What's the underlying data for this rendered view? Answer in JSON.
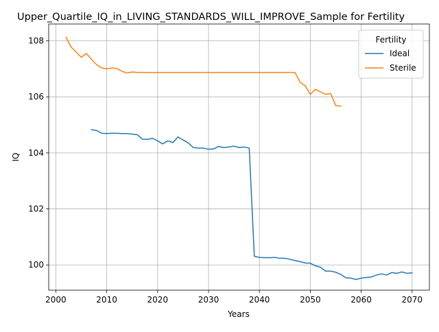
{
  "chart_data": {
    "type": "line",
    "title": "Upper_Quartile_IQ_in_LIVING_STANDARDS_WILL_IMPROVE_Sample for Fertility",
    "xlabel": "Years",
    "ylabel": "IQ",
    "xlim": [
      1998.6,
      2073.4
    ],
    "ylim": [
      99.1,
      108.6
    ],
    "xticks": [
      2000,
      2010,
      2020,
      2030,
      2040,
      2050,
      2060,
      2070
    ],
    "yticks": [
      100,
      102,
      104,
      106,
      108
    ],
    "grid": true,
    "legend": {
      "title": "Fertility",
      "placement": "top-right"
    },
    "series": [
      {
        "name": "Ideal",
        "color": "#1f77b4",
        "x": [
          2007,
          2008,
          2009,
          2010,
          2011,
          2012,
          2013,
          2014,
          2015,
          2016,
          2017,
          2018,
          2019,
          2020,
          2021,
          2022,
          2023,
          2024,
          2025,
          2026,
          2027,
          2028,
          2029,
          2030,
          2031,
          2032,
          2033,
          2034,
          2035,
          2036,
          2037,
          2038,
          2039,
          2040,
          2041,
          2042,
          2043,
          2044,
          2045,
          2046,
          2047,
          2048,
          2049,
          2050,
          2051,
          2052,
          2053,
          2054,
          2055,
          2056,
          2057,
          2058,
          2059,
          2060,
          2061,
          2062,
          2063,
          2064,
          2065,
          2066,
          2067,
          2068,
          2069,
          2070
        ],
        "values": [
          104.83,
          104.8,
          104.7,
          104.69,
          104.7,
          104.7,
          104.69,
          104.69,
          104.67,
          104.65,
          104.49,
          104.48,
          104.52,
          104.43,
          104.32,
          104.43,
          104.37,
          104.57,
          104.46,
          104.36,
          104.19,
          104.17,
          104.17,
          104.13,
          104.14,
          104.23,
          104.19,
          104.21,
          104.24,
          104.19,
          104.21,
          104.17,
          100.31,
          100.27,
          100.26,
          100.26,
          100.27,
          100.24,
          100.24,
          100.2,
          100.16,
          100.12,
          100.07,
          100.06,
          99.97,
          99.92,
          99.78,
          99.78,
          99.74,
          99.66,
          99.54,
          99.53,
          99.48,
          99.53,
          99.55,
          99.57,
          99.64,
          99.68,
          99.64,
          99.73,
          99.7,
          99.75,
          99.7,
          99.72
        ]
      },
      {
        "name": "Sterile",
        "color": "#ff7f0e",
        "x": [
          2002,
          2003,
          2004,
          2005,
          2006,
          2007,
          2008,
          2009,
          2010,
          2011,
          2012,
          2013,
          2014,
          2015,
          2016,
          2017,
          2018,
          2019,
          2020,
          2021,
          2022,
          2023,
          2024,
          2025,
          2026,
          2027,
          2028,
          2029,
          2030,
          2031,
          2032,
          2033,
          2034,
          2035,
          2036,
          2037,
          2038,
          2039,
          2040,
          2041,
          2042,
          2043,
          2044,
          2045,
          2046,
          2047,
          2048,
          2049,
          2050,
          2051,
          2052,
          2053,
          2054,
          2055,
          2056
        ],
        "values": [
          108.13,
          107.78,
          107.6,
          107.41,
          107.55,
          107.34,
          107.15,
          107.03,
          107.0,
          107.03,
          107.01,
          106.91,
          106.85,
          106.89,
          106.87,
          106.87,
          106.87,
          106.87,
          106.87,
          106.87,
          106.87,
          106.87,
          106.87,
          106.87,
          106.87,
          106.87,
          106.87,
          106.87,
          106.87,
          106.87,
          106.87,
          106.87,
          106.87,
          106.87,
          106.87,
          106.87,
          106.87,
          106.87,
          106.87,
          106.87,
          106.87,
          106.87,
          106.87,
          106.87,
          106.87,
          106.87,
          106.52,
          106.4,
          106.09,
          106.27,
          106.18,
          106.09,
          106.12,
          105.69,
          105.67
        ]
      }
    ]
  }
}
